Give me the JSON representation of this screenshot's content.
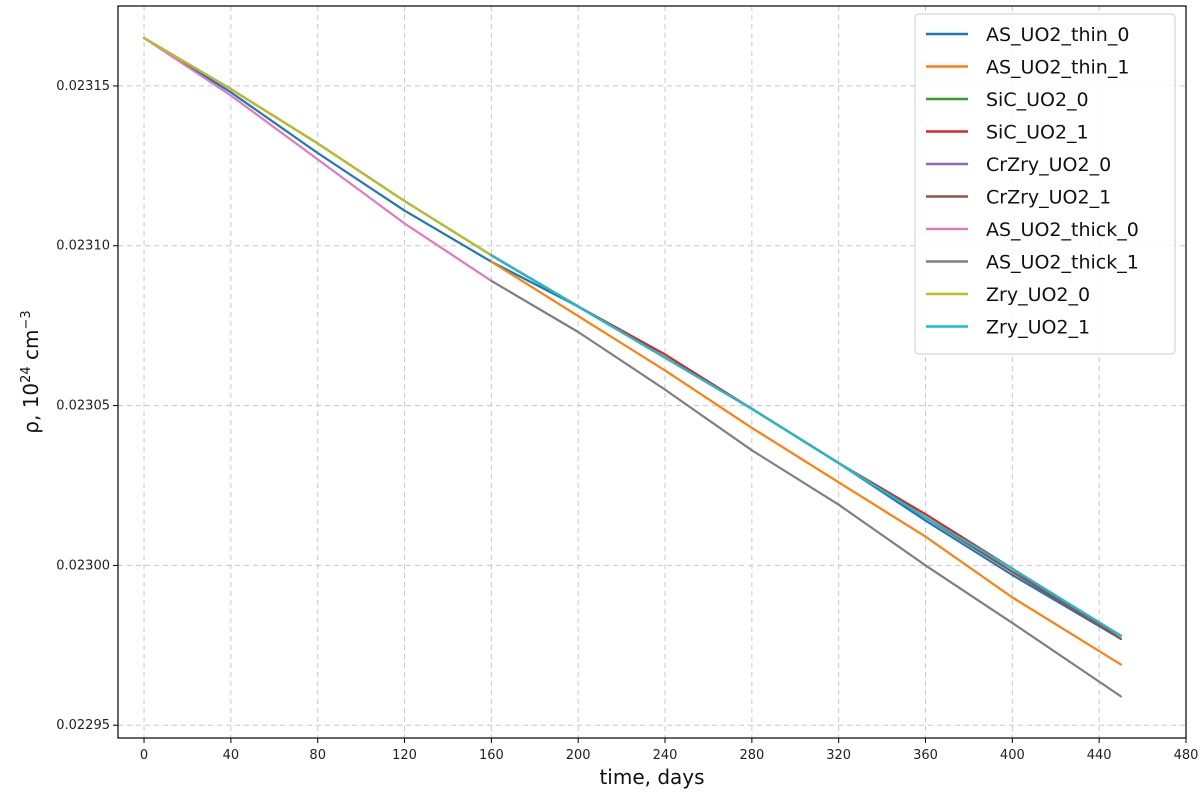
{
  "chart_data": {
    "type": "line",
    "title": "",
    "xlabel": "time, days",
    "ylabel_parts": {
      "rho": "ρ, 10",
      "exp1": "24",
      "unit": " cm",
      "exp2": "−3"
    },
    "xlim": [
      -12,
      480
    ],
    "ylim": [
      0.022946,
      0.023175
    ],
    "x_ticks": [
      0,
      40,
      80,
      120,
      160,
      200,
      240,
      280,
      320,
      360,
      400,
      440,
      480
    ],
    "y_ticks": [
      0.02295,
      0.023,
      0.02305,
      0.0231,
      0.02315
    ],
    "y_tick_labels": [
      "0.02295",
      "0.02300",
      "0.02305",
      "0.02310",
      "0.02315"
    ],
    "grid": true,
    "legend_position": "top-right",
    "series": [
      {
        "name": "AS_UO2_thin_0",
        "color": "#1f77b4",
        "x": [
          0,
          40,
          80,
          120,
          160,
          200,
          240,
          280,
          320,
          360,
          400,
          450
        ],
        "y": [
          0.023165,
          0.023148,
          0.023129,
          0.023111,
          0.023095,
          0.023081,
          0.023065,
          0.023049,
          0.023032,
          0.023014,
          0.022997,
          0.022977
        ]
      },
      {
        "name": "AS_UO2_thin_1",
        "color": "#ff7f0e",
        "x": [
          160,
          200,
          240,
          280,
          320,
          360,
          400,
          450
        ],
        "y": [
          0.023095,
          0.023078,
          0.023061,
          0.023043,
          0.023026,
          0.023009,
          0.02299,
          0.022969
        ]
      },
      {
        "name": "SiC_UO2_0",
        "color": "#2ca02c",
        "x": [
          0,
          40,
          80,
          120,
          160,
          200,
          240,
          280,
          320,
          360,
          400,
          450
        ],
        "y": [
          0.023165,
          0.023149,
          0.023132,
          0.023114,
          0.023097,
          0.023081,
          0.023065,
          0.023049,
          0.023032,
          0.023015,
          0.022998,
          0.022978
        ]
      },
      {
        "name": "SiC_UO2_1",
        "color": "#d62728",
        "x": [
          160,
          200,
          240,
          280,
          320,
          360,
          400,
          450
        ],
        "y": [
          0.023097,
          0.023081,
          0.023066,
          0.023049,
          0.023032,
          0.023016,
          0.022999,
          0.022977
        ]
      },
      {
        "name": "CrZry_UO2_0",
        "color": "#9467bd",
        "x": [
          0,
          40,
          80,
          120,
          160,
          200,
          240,
          280,
          320,
          360,
          400,
          450
        ],
        "y": [
          0.023165,
          0.023149,
          0.023132,
          0.023114,
          0.023097,
          0.023081,
          0.023065,
          0.023049,
          0.023032,
          0.023015,
          0.022998,
          0.022978
        ]
      },
      {
        "name": "CrZry_UO2_1",
        "color": "#8c564b",
        "x": [
          160,
          200,
          240,
          280,
          320,
          360,
          400,
          450
        ],
        "y": [
          0.023097,
          0.023081,
          0.023065,
          0.023049,
          0.023032,
          0.023015,
          0.022998,
          0.022977
        ]
      },
      {
        "name": "AS_UO2_thick_0",
        "color": "#e377c2",
        "x": [
          0,
          40,
          80,
          120,
          160
        ],
        "y": [
          0.023165,
          0.023147,
          0.023127,
          0.023107,
          0.023089
        ]
      },
      {
        "name": "AS_UO2_thick_1",
        "color": "#7f7f7f",
        "x": [
          160,
          200,
          240,
          280,
          320,
          360,
          400,
          450
        ],
        "y": [
          0.023089,
          0.023073,
          0.023055,
          0.023036,
          0.023019,
          0.023,
          0.022982,
          0.022959
        ]
      },
      {
        "name": "Zry_UO2_0",
        "color": "#bcbd22",
        "x": [
          0,
          40,
          80,
          120,
          160
        ],
        "y": [
          0.023165,
          0.023149,
          0.023132,
          0.023114,
          0.023097
        ]
      },
      {
        "name": "Zry_UO2_1",
        "color": "#17becf",
        "x": [
          160,
          200,
          240,
          280,
          320,
          360,
          400,
          450
        ],
        "y": [
          0.023097,
          0.023081,
          0.023065,
          0.023049,
          0.023032,
          0.023015,
          0.022999,
          0.022978
        ]
      }
    ]
  }
}
